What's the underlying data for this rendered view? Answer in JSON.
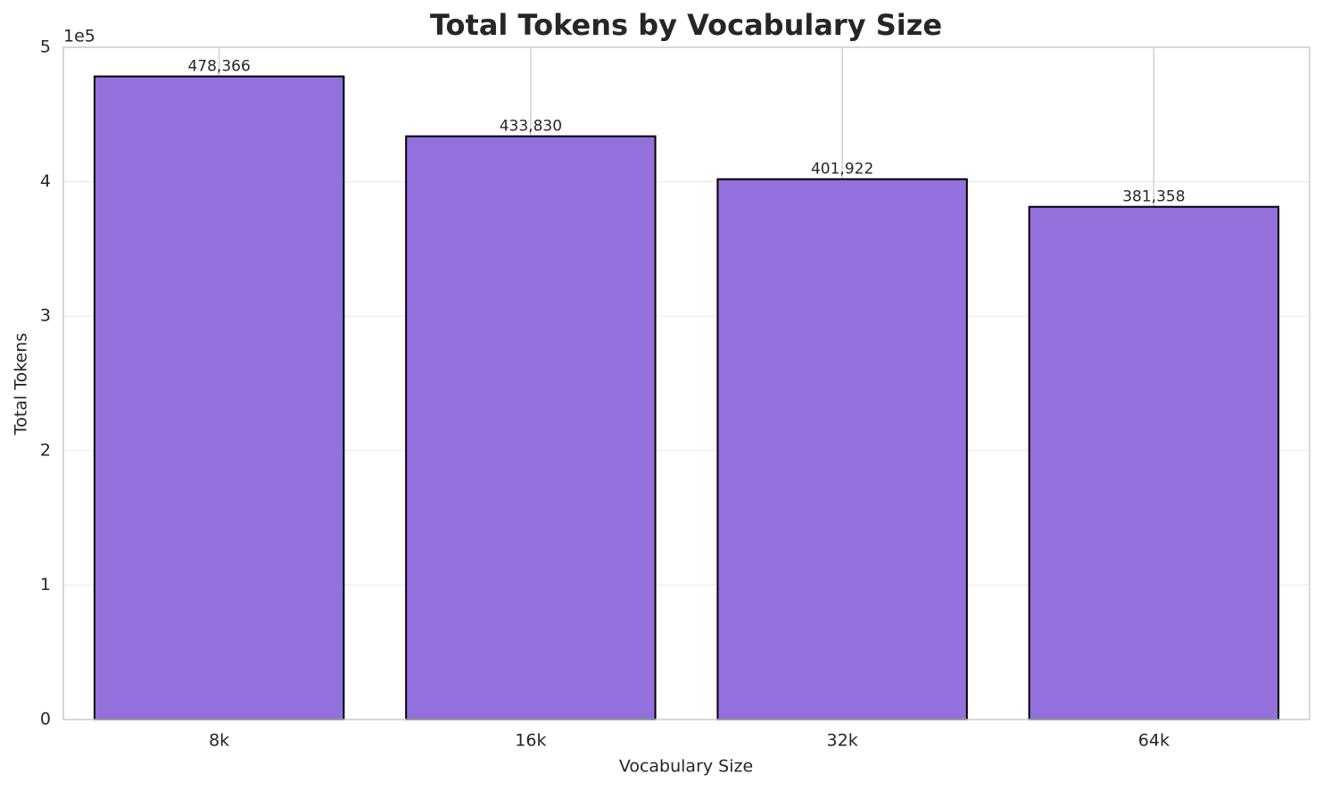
{
  "chart_data": {
    "type": "bar",
    "title": "Total Tokens by Vocabulary Size",
    "x_label": "Vocabulary Size",
    "y_label": "Total Tokens",
    "y_offset_label": "1e5",
    "categories": [
      "8k",
      "16k",
      "32k",
      "64k"
    ],
    "values": [
      478366,
      433830,
      401922,
      381358
    ],
    "value_labels": [
      "478,366",
      "433,830",
      "401,922",
      "381,358"
    ],
    "color": "#9370db",
    "edge_color": "#000000",
    "ylim": [
      0,
      500000
    ],
    "yticks": [
      {
        "value": 0,
        "label": "0"
      },
      {
        "value": 100000,
        "label": "1"
      },
      {
        "value": 200000,
        "label": "2"
      },
      {
        "value": 300000,
        "label": "3"
      },
      {
        "value": 400000,
        "label": "4"
      },
      {
        "value": 500000,
        "label": "5"
      }
    ],
    "grid": true
  }
}
